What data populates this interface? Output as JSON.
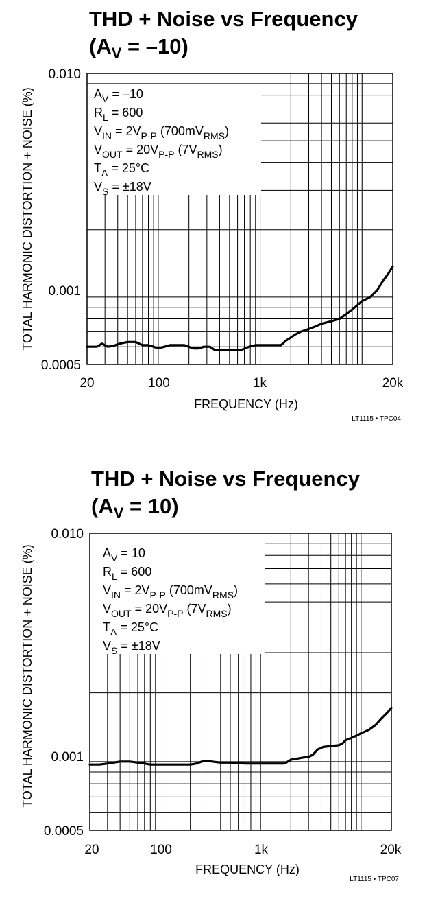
{
  "chart_data": [
    {
      "type": "line",
      "title_main": "THD + Noise vs Frequency",
      "title_sub_prefix": "(A",
      "title_sub_subscript": "V",
      "title_sub_suffix": " = –10)",
      "xlabel": "FREQUENCY (Hz)",
      "ylabel": "TOTAL HARMONIC DISTORTION + NOISE (%)",
      "xscale": "log",
      "yscale": "log",
      "xlim": [
        20,
        20000
      ],
      "ylim": [
        0.0005,
        0.01
      ],
      "x_tick_labels": [
        "20",
        "100",
        "1k",
        "20k"
      ],
      "y_tick_labels": [
        "0.010",
        "0.001",
        "0.0005"
      ],
      "grid": true,
      "conditions": [
        {
          "main": "A",
          "sub": "V",
          "rest": " = –10",
          "sub2": "",
          "rest2": ""
        },
        {
          "main": "R",
          "sub": "L",
          "rest": " = 600",
          "sub2": "",
          "rest2": ""
        },
        {
          "main": "V",
          "sub": "IN",
          "rest": " = 2V",
          "sub2": "P-P",
          "rest2": " (700mV",
          "sub3": "RMS",
          "rest3": ")"
        },
        {
          "main": "V",
          "sub": "OUT",
          "rest": " = 20V",
          "sub2": "P-P",
          "rest2": " (7V",
          "sub3": "RMS",
          "rest3": ")"
        },
        {
          "main": "T",
          "sub": "A",
          "rest": " = 25°C",
          "sub2": "",
          "rest2": ""
        },
        {
          "main": "V",
          "sub": "S",
          "rest": " = ±18V",
          "sub2": "",
          "rest2": ""
        }
      ],
      "figure_id": "LT1115 • TPC04",
      "series": [
        {
          "x": [
            20,
            25,
            28,
            32,
            36,
            42,
            50,
            60,
            70,
            80,
            90,
            100,
            115,
            130,
            150,
            180,
            220,
            250,
            280,
            320,
            360,
            400,
            480,
            550,
            650,
            780,
            900,
            1000,
            1100,
            1300,
            1600,
            1800,
            2000,
            2200,
            2500,
            3000,
            3500,
            4000,
            5000,
            6000,
            7000,
            8000,
            9000,
            10000,
            12000,
            14000,
            16000,
            18000,
            20000
          ],
          "y": [
            0.0006,
            0.0006,
            0.00062,
            0.0006,
            0.000605,
            0.00062,
            0.00063,
            0.00063,
            0.00061,
            0.00061,
            0.0006,
            0.00059,
            0.0006,
            0.00061,
            0.00061,
            0.00061,
            0.00059,
            0.00059,
            0.0006,
            0.0006,
            0.00058,
            0.00058,
            0.00058,
            0.00058,
            0.00058,
            0.0006,
            0.00061,
            0.00061,
            0.00061,
            0.00061,
            0.00061,
            0.00064,
            0.00066,
            0.00068,
            0.0007,
            0.00072,
            0.00074,
            0.00076,
            0.00078,
            0.0008,
            0.00084,
            0.00088,
            0.00092,
            0.00096,
            0.001,
            0.00107,
            0.00118,
            0.00127,
            0.00137
          ]
        }
      ]
    },
    {
      "type": "line",
      "title_main": "THD + Noise vs Frequency",
      "title_sub_prefix": "(A",
      "title_sub_subscript": "V",
      "title_sub_suffix": " = 10)",
      "xlabel": "FREQUENCY (Hz)",
      "ylabel": "TOTAL HARMONIC DISTORTION + NOISE (%)",
      "xscale": "log",
      "yscale": "log",
      "xlim": [
        20,
        20000
      ],
      "ylim": [
        0.0005,
        0.01
      ],
      "x_tick_labels": [
        "20",
        "100",
        "1k",
        "20k"
      ],
      "y_tick_labels": [
        "0.010",
        "0.001",
        "0.0005"
      ],
      "grid": true,
      "conditions": [
        {
          "main": "A",
          "sub": "V",
          "rest": " = 10",
          "sub2": "",
          "rest2": ""
        },
        {
          "main": "R",
          "sub": "L",
          "rest": " = 600",
          "sub2": "",
          "rest2": ""
        },
        {
          "main": "V",
          "sub": "IN",
          "rest": " = 2V",
          "sub2": "P-P",
          "rest2": " (700mV",
          "sub3": "RMS",
          "rest3": ")"
        },
        {
          "main": "V",
          "sub": "OUT",
          "rest": " = 20V",
          "sub2": "P-P",
          "rest2": " (7V",
          "sub3": "RMS",
          "rest3": ")"
        },
        {
          "main": "T",
          "sub": "A",
          "rest": " = 25°C",
          "sub2": "",
          "rest2": ""
        },
        {
          "main": "V",
          "sub": "S",
          "rest": " = ±18V",
          "sub2": "",
          "rest2": ""
        }
      ],
      "figure_id": "LT1115 • TPC07",
      "series": [
        {
          "x": [
            20,
            25,
            30,
            40,
            50,
            60,
            70,
            80,
            100,
            130,
            160,
            200,
            230,
            260,
            300,
            330,
            400,
            500,
            700,
            1000,
            1400,
            1700,
            1800,
            2000,
            2300,
            2600,
            3000,
            3300,
            3700,
            4200,
            5000,
            6000,
            6500,
            7000,
            8000,
            9000,
            10000,
            12000,
            14000,
            16000,
            18000,
            20000
          ],
          "y": [
            0.00097,
            0.00097,
            0.00098,
            0.001,
            0.001,
            0.00099,
            0.00098,
            0.00097,
            0.00097,
            0.00097,
            0.00097,
            0.00097,
            0.00098,
            0.001,
            0.00101,
            0.001,
            0.00099,
            0.00099,
            0.00098,
            0.00098,
            0.00098,
            0.00098,
            0.00099,
            0.00102,
            0.00103,
            0.00104,
            0.00105,
            0.00107,
            0.00113,
            0.00116,
            0.00117,
            0.00118,
            0.0012,
            0.00124,
            0.00127,
            0.0013,
            0.00133,
            0.00138,
            0.00145,
            0.00155,
            0.00163,
            0.00172
          ]
        }
      ]
    }
  ]
}
